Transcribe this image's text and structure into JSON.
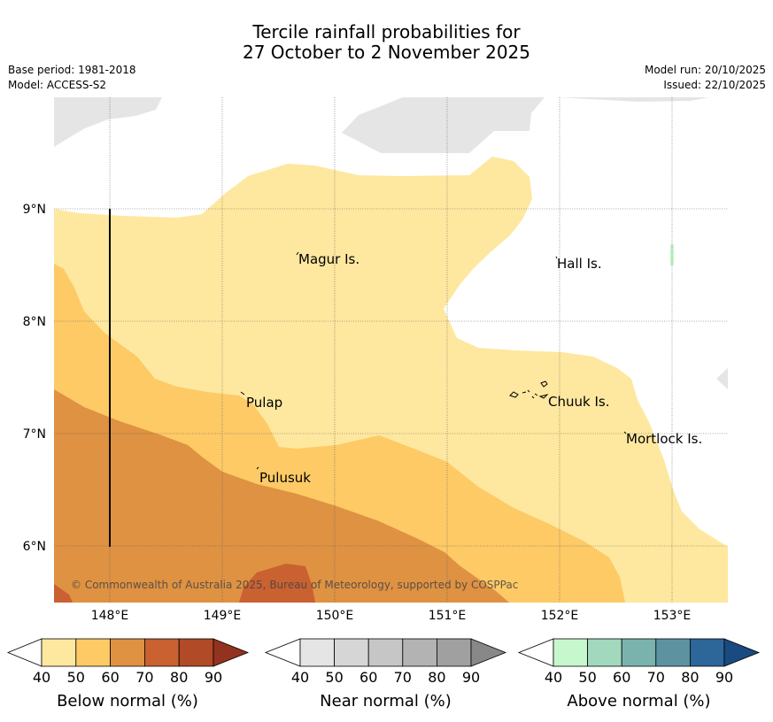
{
  "header": {
    "title_line1": "Tercile rainfall probabilities for",
    "title_line2": "27 October to 2 November 2025",
    "base_period": "Base period: 1981-2018",
    "model": "Model: ACCESS-S2",
    "model_run": "Model run: 20/10/2025",
    "issued": "Issued: 22/10/2025"
  },
  "map": {
    "lat_labels": [
      "9°N",
      "8°N",
      "7°N",
      "6°N"
    ],
    "lon_labels": [
      "148°E",
      "149°E",
      "150°E",
      "151°E",
      "152°E",
      "153°E"
    ],
    "places": [
      "Magur Is.",
      "Hall Is.",
      "Pulap",
      "Chuuk Is.",
      "Mortlock Is.",
      "Pulusuk"
    ],
    "copyright": "© Commonwealth of Australia 2025, Bureau of Meteorology, supported by COSPPac"
  },
  "legend": {
    "below": {
      "label": "Below normal (%)",
      "ticks": [
        "40",
        "50",
        "60",
        "70",
        "80",
        "90"
      ],
      "colors": [
        "#ffffff",
        "#fee89f",
        "#fdca66",
        "#df9242",
        "#c96131",
        "#b04a27",
        "#93321f"
      ]
    },
    "near": {
      "label": "Near normal (%)",
      "ticks": [
        "40",
        "50",
        "60",
        "70",
        "80",
        "90"
      ],
      "colors": [
        "#ffffff",
        "#e5e5e5",
        "#d6d6d6",
        "#c6c6c6",
        "#b3b3b3",
        "#a0a0a0",
        "#888888"
      ]
    },
    "above": {
      "label": "Above normal (%)",
      "ticks": [
        "40",
        "50",
        "60",
        "70",
        "80",
        "90"
      ],
      "colors": [
        "#ffffff",
        "#c7f7cc",
        "#a2d8bd",
        "#7ab3ae",
        "#5d93a0",
        "#2d6699",
        "#1a4b80"
      ]
    }
  }
}
